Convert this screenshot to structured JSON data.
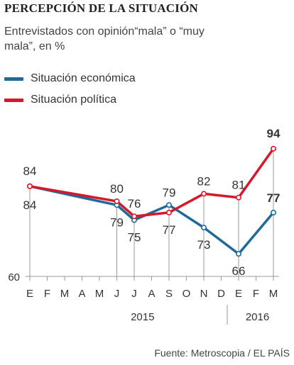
{
  "title": "PERCEPCIÓN DE LA SITUACIÓN",
  "subtitle": "Entrevistados con opinión“mala” o “muy mala”, en %",
  "source": "Fuente: Metroscopia / EL PAÍS",
  "colors": {
    "economica": "#1f6a99",
    "politica": "#d7182a",
    "axis": "#999999",
    "text": "#333333"
  },
  "chart_data": {
    "type": "line",
    "title": "PERCEPCIÓN DE LA SITUACIÓN",
    "ylabel": "Entrevistados con opinión“mala” o “muy mala”, en %",
    "month_labels": [
      "E",
      "F",
      "M",
      "A",
      "M",
      "J",
      "J",
      "A",
      "S",
      "O",
      "N",
      "D",
      "E",
      "F",
      "M"
    ],
    "year_labels": [
      "2015",
      "2016"
    ],
    "ylim": [
      60,
      100
    ],
    "y_tick_labels": [
      "60"
    ],
    "legend_position": "top-left",
    "series": [
      {
        "name": "Situación económica",
        "color": "#1f6a99",
        "points": [
          {
            "m": 0,
            "v": 84
          },
          {
            "m": 5,
            "v": 79
          },
          {
            "m": 6,
            "v": 75
          },
          {
            "m": 8,
            "v": 79
          },
          {
            "m": 10,
            "v": 73
          },
          {
            "m": 12,
            "v": 66
          },
          {
            "m": 14,
            "v": 77
          }
        ]
      },
      {
        "name": "Situación política",
        "color": "#d7182a",
        "points": [
          {
            "m": 0,
            "v": 84
          },
          {
            "m": 5,
            "v": 80
          },
          {
            "m": 6,
            "v": 76
          },
          {
            "m": 8,
            "v": 77
          },
          {
            "m": 10,
            "v": 82
          },
          {
            "m": 12,
            "v": 81
          },
          {
            "m": 14,
            "v": 94
          }
        ]
      }
    ],
    "data_labels": [
      {
        "m": 0,
        "text": "84",
        "pos": "above"
      },
      {
        "m": 0,
        "text": "84",
        "pos": "below"
      },
      {
        "m": 5,
        "text": "80",
        "pos": "above"
      },
      {
        "m": 5,
        "text": "79",
        "pos": "below"
      },
      {
        "m": 6,
        "text": "76",
        "pos": "above"
      },
      {
        "m": 6,
        "text": "75",
        "pos": "below"
      },
      {
        "m": 8,
        "text": "79",
        "pos": "above"
      },
      {
        "m": 8,
        "text": "77",
        "pos": "below"
      },
      {
        "m": 10,
        "text": "82",
        "pos": "above"
      },
      {
        "m": 10,
        "text": "73",
        "pos": "below"
      },
      {
        "m": 12,
        "text": "81",
        "pos": "above"
      },
      {
        "m": 12,
        "text": "66",
        "pos": "below"
      },
      {
        "m": 14,
        "text": "94",
        "pos": "above",
        "bold": true
      },
      {
        "m": 14,
        "text": "77",
        "pos": "above-blue",
        "bold": true
      }
    ]
  }
}
